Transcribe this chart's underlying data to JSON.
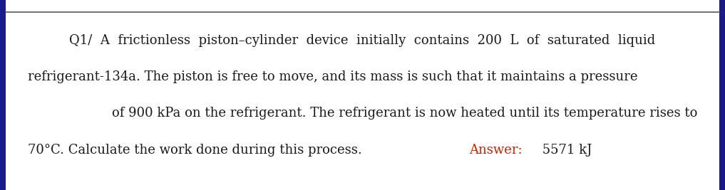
{
  "bg_color": "#ffffff",
  "left_border_color": "#1a1a8c",
  "top_line_color": "#555555",
  "text_color": "#1a1a1a",
  "answer_label_color": "#cc2200",
  "line1": "Q1/  A  frictionless  piston–cylinder  device  initially  contains  200  L  of  saturated  liquid",
  "line2": "refrigerant-134a. The piston is free to move, and its mass is such that it maintains a pressure",
  "line3": "of 900 kPa on the refrigerant. The refrigerant is now heated until its temperature rises to",
  "line4_part1": "70°C. Calculate the work done during this process.  ",
  "line4_answer_label": "Answer:",
  "line4_answer_value": " 5571 kJ",
  "font_size": 13.0,
  "fig_width": 10.17,
  "fig_height": 2.67
}
